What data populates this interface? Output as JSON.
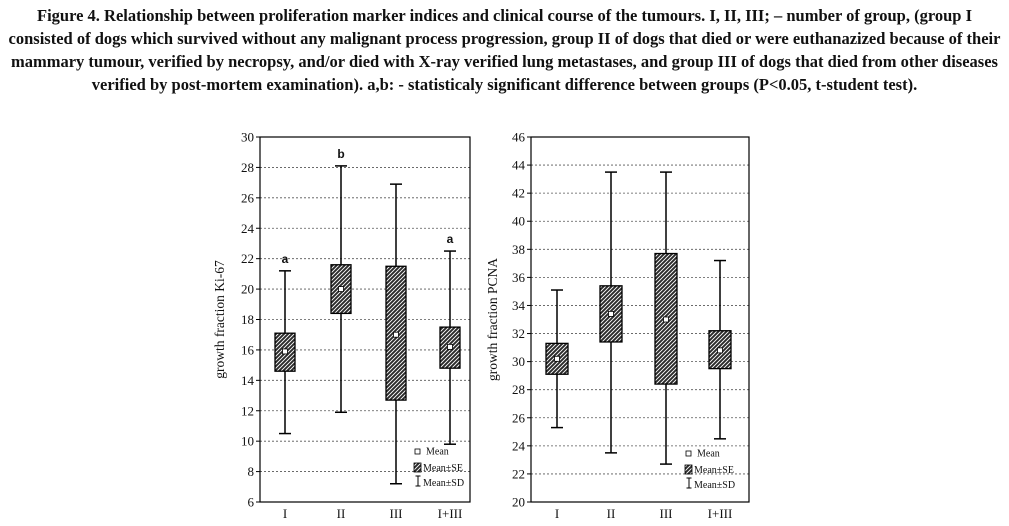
{
  "caption": "Figure 4. Relationship between proliferation marker indices and clinical course of the tumours. I, II, III; – number of group, (group I consisted of dogs which survived without any malignant process progression, group II of dogs that died or were euthanazized because of their mammary tumour, verified by necropsy, and/or died with X-ray verified lung metastases, and group III of dogs that died from other diseases verified by post-mortem examination). a,b: - statisticaly significant difference between groups (P<0.05, t-student test).",
  "legend": {
    "mean": "Mean",
    "se": "Mean±SE",
    "sd": "Mean±SD"
  },
  "colors": {
    "box_fill": "#2b2b2b",
    "hatch": "#ffffff",
    "axis": "#000000"
  },
  "chart_data": [
    {
      "type": "box",
      "ylabel": "growth fraction Ki-67",
      "ylim": [
        6,
        30
      ],
      "yticks": [
        6,
        8,
        10,
        12,
        14,
        16,
        18,
        20,
        22,
        24,
        26,
        28,
        30
      ],
      "grid": true,
      "legend_position": "bottom-right",
      "categories": [
        "I",
        "II",
        "III",
        "I+III"
      ],
      "series": [
        {
          "category": "I",
          "mean": 15.9,
          "se_low": 14.6,
          "se_high": 17.1,
          "sd_low": 10.5,
          "sd_high": 21.2,
          "annotation": "a"
        },
        {
          "category": "II",
          "mean": 20.0,
          "se_low": 18.4,
          "se_high": 21.6,
          "sd_low": 11.9,
          "sd_high": 28.1,
          "annotation": "b"
        },
        {
          "category": "III",
          "mean": 17.0,
          "se_low": 12.7,
          "se_high": 21.5,
          "sd_low": 7.2,
          "sd_high": 26.9,
          "annotation": ""
        },
        {
          "category": "I+III",
          "mean": 16.2,
          "se_low": 14.8,
          "se_high": 17.5,
          "sd_low": 9.8,
          "sd_high": 22.5,
          "annotation": "a"
        }
      ]
    },
    {
      "type": "box",
      "ylabel": "growth fraction PCNA",
      "ylim": [
        20,
        46
      ],
      "yticks": [
        20,
        22,
        24,
        26,
        28,
        30,
        32,
        34,
        36,
        38,
        40,
        42,
        44,
        46
      ],
      "grid": true,
      "legend_position": "bottom-right",
      "categories": [
        "I",
        "II",
        "III",
        "I+III"
      ],
      "series": [
        {
          "category": "I",
          "mean": 30.2,
          "se_low": 29.1,
          "se_high": 31.3,
          "sd_low": 25.3,
          "sd_high": 35.1,
          "annotation": ""
        },
        {
          "category": "II",
          "mean": 33.4,
          "se_low": 31.4,
          "se_high": 35.4,
          "sd_low": 23.5,
          "sd_high": 43.5,
          "annotation": ""
        },
        {
          "category": "III",
          "mean": 33.0,
          "se_low": 28.4,
          "se_high": 37.7,
          "sd_low": 22.7,
          "sd_high": 43.5,
          "annotation": ""
        },
        {
          "category": "I+III",
          "mean": 30.8,
          "se_low": 29.5,
          "se_high": 32.2,
          "sd_low": 24.5,
          "sd_high": 37.2,
          "annotation": ""
        }
      ]
    }
  ]
}
